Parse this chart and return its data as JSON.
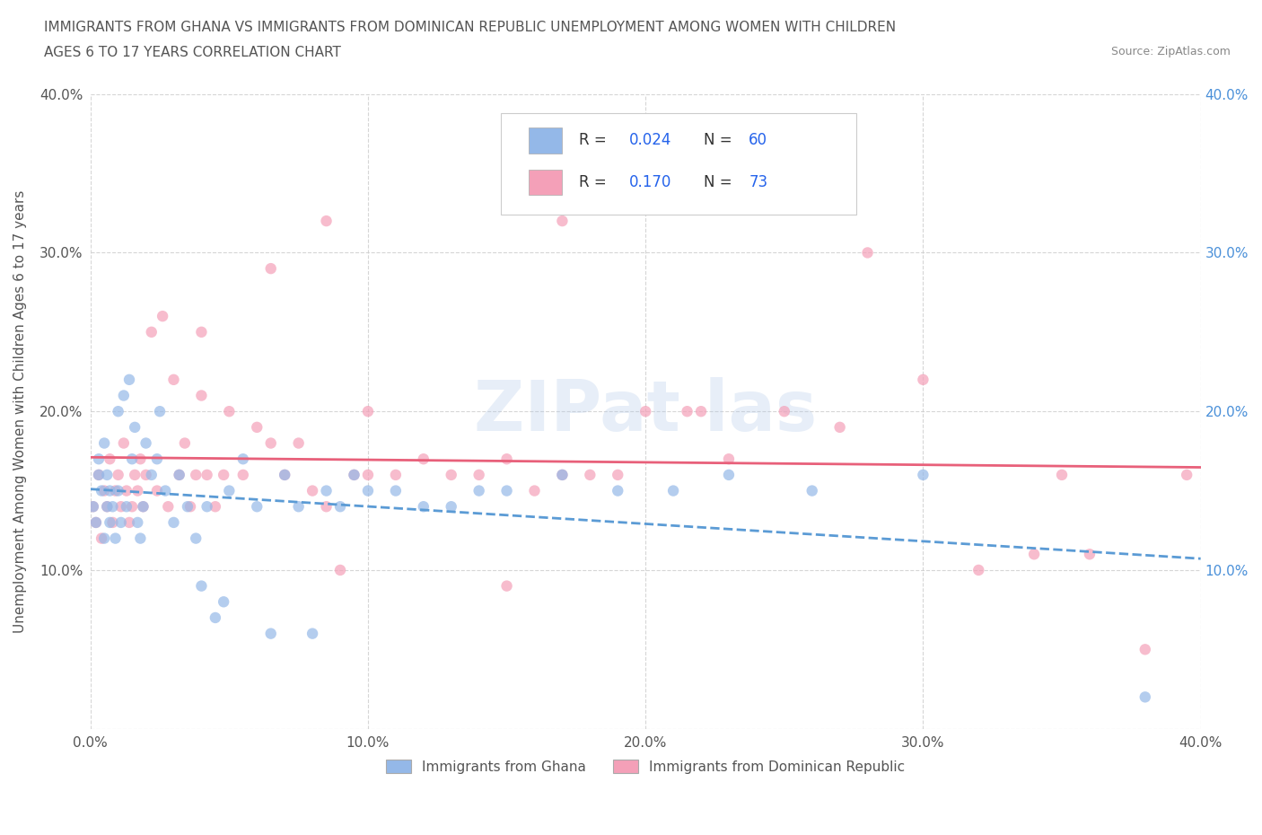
{
  "title_line1": "IMMIGRANTS FROM GHANA VS IMMIGRANTS FROM DOMINICAN REPUBLIC UNEMPLOYMENT AMONG WOMEN WITH CHILDREN",
  "title_line2": "AGES 6 TO 17 YEARS CORRELATION CHART",
  "source": "Source: ZipAtlas.com",
  "ylabel": "Unemployment Among Women with Children Ages 6 to 17 years",
  "xlim": [
    0.0,
    0.4
  ],
  "ylim": [
    0.0,
    0.4
  ],
  "ghana_R": 0.024,
  "ghana_N": 60,
  "dr_R": 0.17,
  "dr_N": 73,
  "ghana_color": "#94b8e8",
  "dr_color": "#f4a0b8",
  "trendline_ghana_color": "#5b9bd5",
  "trendline_dr_color": "#e8607a",
  "watermark": "ZIPat las",
  "background_color": "#ffffff",
  "legend_R_color": "#2563eb",
  "legend_N_color": "#2563eb",
  "right_tick_color": "#4a90d9",
  "ghana_x": [
    0.001,
    0.002,
    0.003,
    0.003,
    0.004,
    0.005,
    0.005,
    0.006,
    0.006,
    0.007,
    0.007,
    0.008,
    0.009,
    0.01,
    0.01,
    0.011,
    0.012,
    0.013,
    0.014,
    0.015,
    0.016,
    0.017,
    0.018,
    0.019,
    0.02,
    0.022,
    0.024,
    0.025,
    0.027,
    0.03,
    0.032,
    0.035,
    0.038,
    0.04,
    0.042,
    0.045,
    0.048,
    0.05,
    0.055,
    0.06,
    0.065,
    0.07,
    0.075,
    0.08,
    0.085,
    0.09,
    0.095,
    0.1,
    0.11,
    0.12,
    0.13,
    0.14,
    0.15,
    0.17,
    0.19,
    0.21,
    0.23,
    0.26,
    0.3,
    0.38
  ],
  "ghana_y": [
    0.14,
    0.13,
    0.16,
    0.17,
    0.15,
    0.12,
    0.18,
    0.14,
    0.16,
    0.15,
    0.13,
    0.14,
    0.12,
    0.15,
    0.2,
    0.13,
    0.21,
    0.14,
    0.22,
    0.17,
    0.19,
    0.13,
    0.12,
    0.14,
    0.18,
    0.16,
    0.17,
    0.2,
    0.15,
    0.13,
    0.16,
    0.14,
    0.12,
    0.09,
    0.14,
    0.07,
    0.08,
    0.15,
    0.17,
    0.14,
    0.06,
    0.16,
    0.14,
    0.06,
    0.15,
    0.14,
    0.16,
    0.15,
    0.15,
    0.14,
    0.14,
    0.15,
    0.15,
    0.16,
    0.15,
    0.15,
    0.16,
    0.15,
    0.16,
    0.02
  ],
  "dr_x": [
    0.001,
    0.002,
    0.003,
    0.004,
    0.005,
    0.006,
    0.007,
    0.008,
    0.009,
    0.01,
    0.011,
    0.012,
    0.013,
    0.014,
    0.015,
    0.016,
    0.017,
    0.018,
    0.019,
    0.02,
    0.022,
    0.024,
    0.026,
    0.028,
    0.03,
    0.032,
    0.034,
    0.036,
    0.038,
    0.04,
    0.042,
    0.045,
    0.048,
    0.05,
    0.055,
    0.06,
    0.065,
    0.07,
    0.075,
    0.08,
    0.085,
    0.09,
    0.095,
    0.1,
    0.11,
    0.12,
    0.13,
    0.14,
    0.15,
    0.16,
    0.17,
    0.18,
    0.19,
    0.2,
    0.215,
    0.23,
    0.25,
    0.27,
    0.3,
    0.32,
    0.34,
    0.36,
    0.38,
    0.395,
    0.04,
    0.085,
    0.17,
    0.22,
    0.28,
    0.35,
    0.065,
    0.1,
    0.15
  ],
  "dr_y": [
    0.14,
    0.13,
    0.16,
    0.12,
    0.15,
    0.14,
    0.17,
    0.13,
    0.15,
    0.16,
    0.14,
    0.18,
    0.15,
    0.13,
    0.14,
    0.16,
    0.15,
    0.17,
    0.14,
    0.16,
    0.25,
    0.15,
    0.26,
    0.14,
    0.22,
    0.16,
    0.18,
    0.14,
    0.16,
    0.21,
    0.16,
    0.14,
    0.16,
    0.2,
    0.16,
    0.19,
    0.18,
    0.16,
    0.18,
    0.15,
    0.14,
    0.1,
    0.16,
    0.2,
    0.16,
    0.17,
    0.16,
    0.16,
    0.17,
    0.15,
    0.16,
    0.16,
    0.16,
    0.2,
    0.2,
    0.17,
    0.2,
    0.19,
    0.22,
    0.1,
    0.11,
    0.11,
    0.05,
    0.16,
    0.25,
    0.32,
    0.32,
    0.2,
    0.3,
    0.16,
    0.29,
    0.16,
    0.09
  ]
}
